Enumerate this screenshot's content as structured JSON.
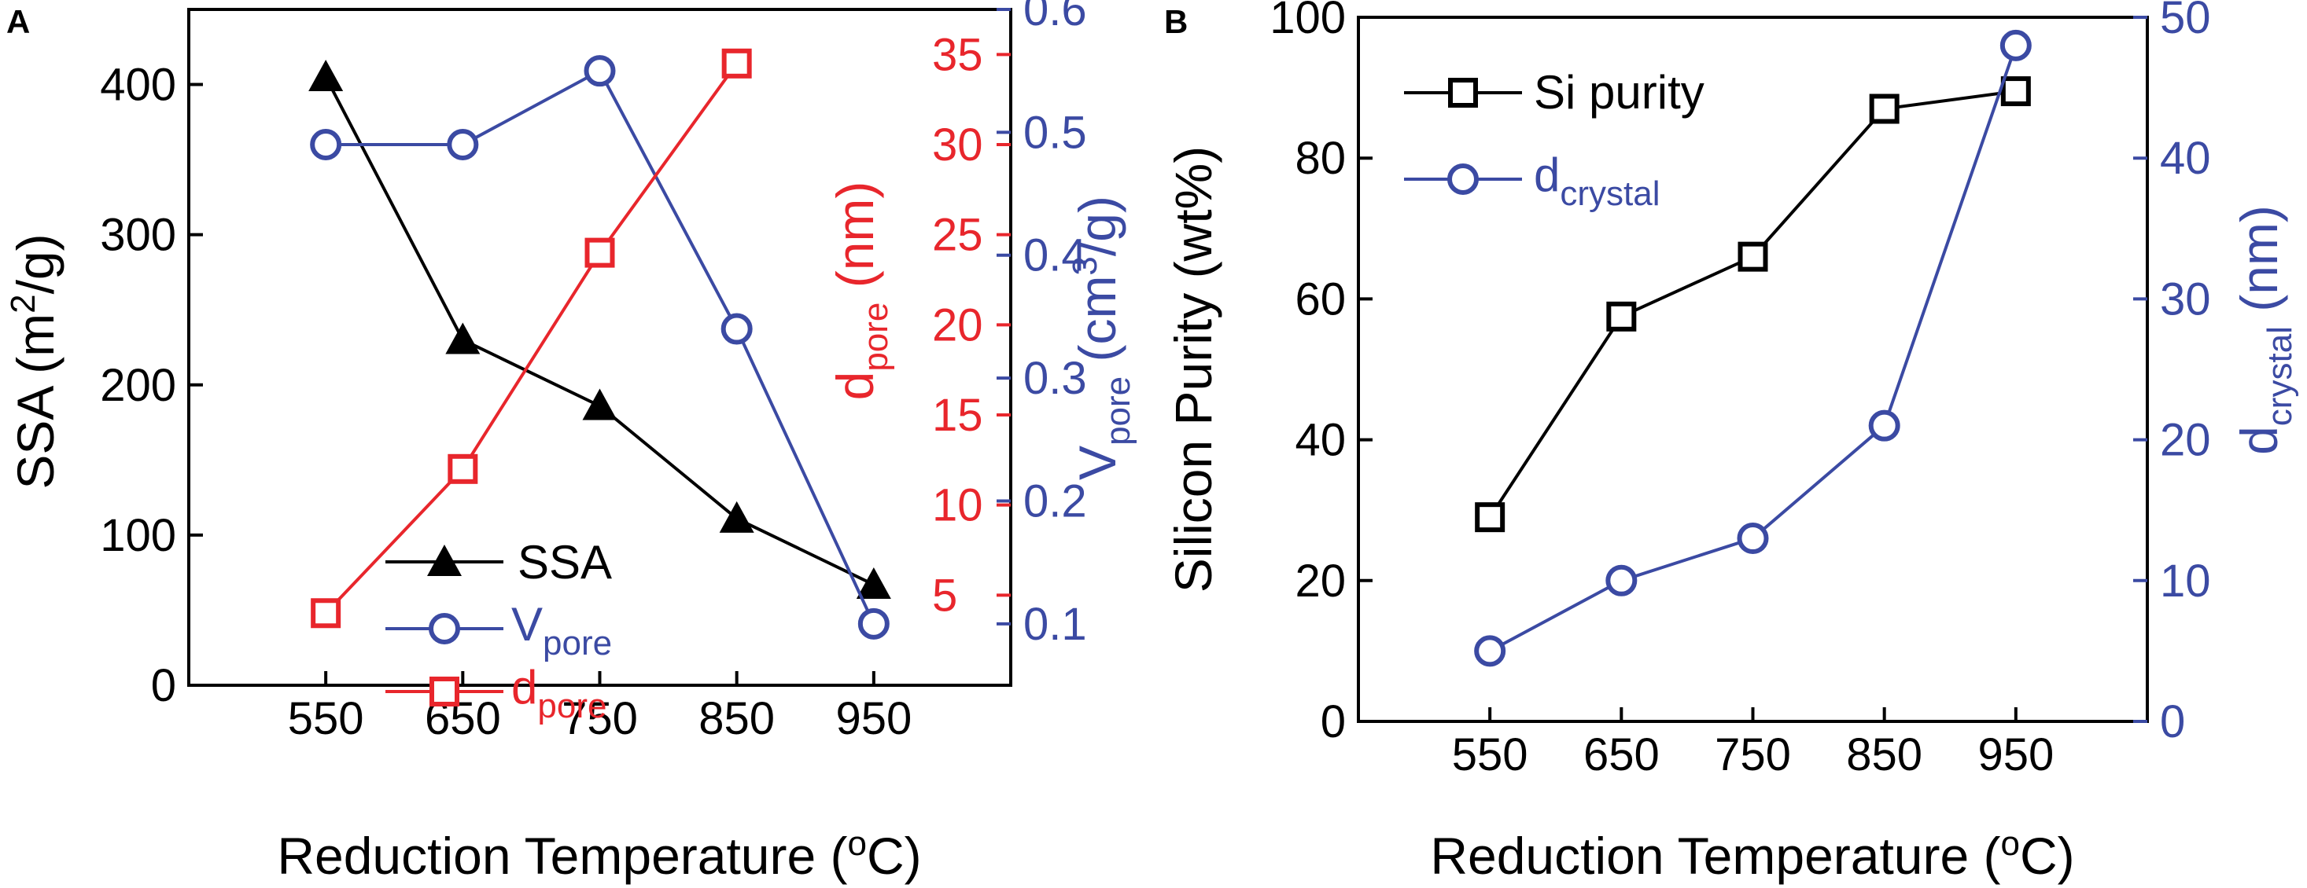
{
  "colors": {
    "black": "#000000",
    "red": "#e8262c",
    "blue": "#3b4aa3"
  },
  "chart_data": [
    {
      "panel": "A",
      "type": "line",
      "x": [
        550,
        650,
        750,
        850,
        950
      ],
      "xticks": [
        "550",
        "650",
        "750",
        "850",
        "950"
      ],
      "xlim": [
        450,
        1050
      ],
      "xlabel": "Reduction Temperature  (",
      "xlabel_sup": "o",
      "xlabel_end": "C)",
      "axes": {
        "left": {
          "label_main": "SSA (m",
          "label_sup": "2",
          "label_end": "/g)",
          "ylim": [
            0,
            450
          ],
          "ticks": [
            "0",
            "100",
            "200",
            "300",
            "400"
          ]
        },
        "right1": {
          "label_main": "d",
          "label_sub": "pore",
          "label_end": " (nm)",
          "ylim": [
            0,
            37.5
          ],
          "ticks": [
            "5",
            "10",
            "15",
            "20",
            "25",
            "30",
            "35"
          ]
        },
        "right2": {
          "label_main": "V",
          "label_sub": "pore",
          "label_mid": " (cm",
          "label_sup": "3",
          "label_end": "/g)",
          "ylim": [
            0.05,
            0.6
          ],
          "ticks": [
            "0.1",
            "0.2",
            "0.3",
            "0.4",
            "0.5",
            "0.6"
          ]
        }
      },
      "series": [
        {
          "name": "SSA",
          "axis": "left",
          "marker": "triangle",
          "color": "#000000",
          "x": [
            550,
            650,
            750,
            850,
            950
          ],
          "values": [
            405,
            230,
            186,
            111,
            67
          ]
        },
        {
          "name": "V",
          "name_sub": "pore",
          "axis": "right2",
          "marker": "circle",
          "color": "#3b4aa3",
          "x": [
            550,
            650,
            750,
            850,
            950
          ],
          "values": [
            0.49,
            0.49,
            0.55,
            0.34,
            0.1
          ]
        },
        {
          "name": "d",
          "name_sub": "pore",
          "axis": "right1",
          "marker": "square",
          "color": "#e8262c",
          "x": [
            550,
            650,
            750,
            850
          ],
          "values": [
            4,
            12,
            24,
            34.5
          ]
        }
      ]
    },
    {
      "panel": "B",
      "type": "line",
      "x": [
        550,
        650,
        750,
        850,
        950
      ],
      "xticks": [
        "550",
        "650",
        "750",
        "850",
        "950"
      ],
      "xlim": [
        450,
        1050
      ],
      "xlabel": "Reduction Temperature  (",
      "xlabel_sup": "o",
      "xlabel_end": "C)",
      "axes": {
        "left": {
          "label": "Silicon Purity (wt%)",
          "ylim": [
            0,
            100
          ],
          "ticks": [
            "0",
            "20",
            "40",
            "60",
            "80",
            "100"
          ]
        },
        "right": {
          "label_main": "d",
          "label_sub": "crystal",
          "label_end": " (nm)",
          "ylim": [
            0,
            50
          ],
          "ticks": [
            "0",
            "10",
            "20",
            "30",
            "40",
            "50"
          ]
        }
      },
      "series": [
        {
          "name": "Si purity",
          "axis": "left",
          "marker": "square",
          "color": "#000000",
          "x": [
            550,
            650,
            750,
            850,
            950
          ],
          "values": [
            29,
            57.5,
            66,
            87,
            89.5
          ]
        },
        {
          "name": "d",
          "name_sub": "crystal",
          "axis": "right",
          "marker": "circle",
          "color": "#3b4aa3",
          "x": [
            550,
            650,
            750,
            850,
            950
          ],
          "values": [
            5,
            10,
            13,
            21,
            48
          ]
        }
      ]
    }
  ]
}
